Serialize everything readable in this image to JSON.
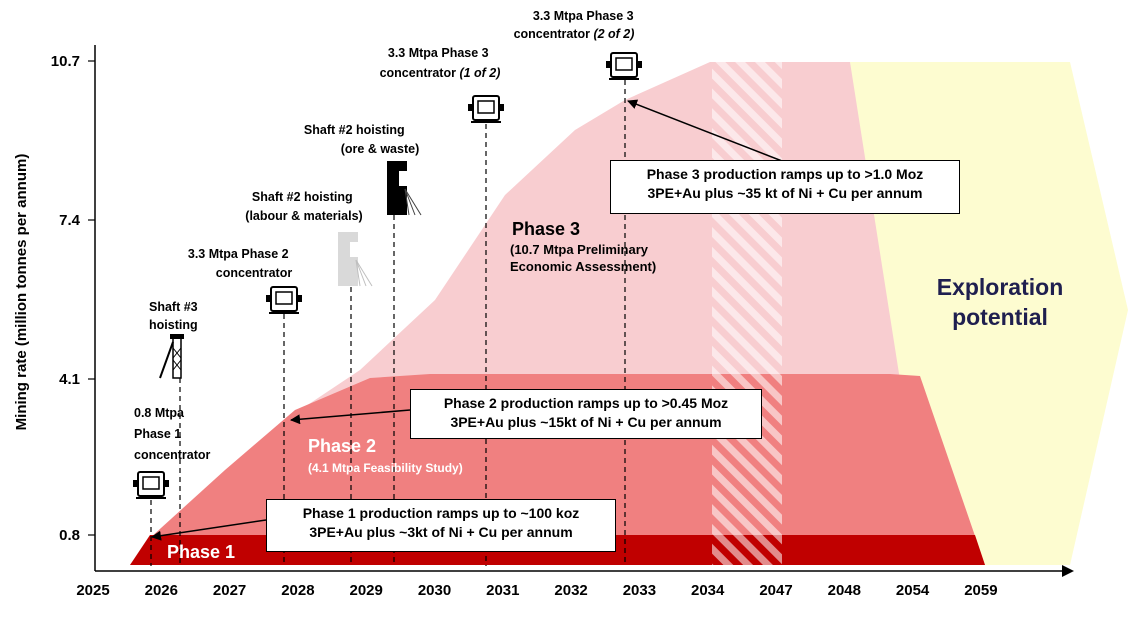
{
  "chart_data": {
    "type": "area",
    "ylabel": "Mining rate (million tonnes per annum)",
    "y_ticks": [
      0.8,
      4.1,
      7.4,
      10.7
    ],
    "x_ticks": [
      "2025",
      "2026",
      "2027",
      "2028",
      "2029",
      "2030",
      "2031",
      "2032",
      "2033",
      "2034",
      "2047",
      "2048",
      "2054",
      "2059"
    ],
    "series": [
      {
        "name": "Phase 1",
        "sub": "",
        "x": [
          "2025",
          "2026",
          "2054",
          "2059"
        ],
        "values": [
          0,
          0.8,
          0.8,
          0
        ]
      },
      {
        "name": "Phase 2",
        "sub": "(4.1 Mtpa Feasibility Study)",
        "x": [
          "2025",
          "2026",
          "2027",
          "2028",
          "2029",
          "2030",
          "2048",
          "2054",
          "2059"
        ],
        "values": [
          0,
          0.8,
          2.0,
          3.4,
          4.0,
          4.1,
          4.1,
          4.1,
          0
        ]
      },
      {
        "name": "Phase 3",
        "sub": "(10.7 Mtpa Preliminary Economic Assessment)",
        "x": [
          "2025",
          "2026",
          "2028",
          "2029",
          "2030",
          "2031",
          "2032",
          "2033",
          "2034",
          "2048",
          "2054",
          "2059"
        ],
        "values": [
          0,
          0.8,
          3.5,
          4.1,
          5.4,
          7.7,
          9.2,
          10.0,
          10.7,
          10.7,
          8.0,
          0
        ]
      },
      {
        "name": "Exploration potential",
        "sub": "",
        "x": [],
        "values": []
      }
    ],
    "milestones": [
      {
        "x": "2026",
        "label": [
          "0.8 Mtpa",
          "Phase 1",
          "concentrator"
        ],
        "icon": "concentrator-icon"
      },
      {
        "x": "2026",
        "label": [
          "Shaft #3",
          "hoisting"
        ],
        "icon": "headframe-icon"
      },
      {
        "x": "2028",
        "label": [
          "3.3 Mtpa Phase 2",
          "concentrator"
        ],
        "icon": "concentrator-icon"
      },
      {
        "x": "2029",
        "label": [
          "Shaft #2 hoisting",
          "(labour & materials)"
        ],
        "icon": "shaft-gray-icon"
      },
      {
        "x": "2029",
        "label": [
          "Shaft #2 hoisting",
          "(ore & waste)"
        ],
        "icon": "shaft-black-icon"
      },
      {
        "x": "2031",
        "label": [
          "3.3 Mtpa Phase 3",
          "concentrator (1 of 2)"
        ],
        "icon": "concentrator-icon"
      },
      {
        "x": "2033",
        "label": [
          "3.3 Mtpa Phase 3",
          "concentrator (2 of 2)"
        ],
        "icon": "concentrator-icon"
      }
    ],
    "annotations": [
      {
        "lines": [
          "Phase 1 production ramps up to ~100 koz",
          "3PE+Au plus ~3kt of Ni + Cu per annum"
        ]
      },
      {
        "lines": [
          "Phase 2 production ramps up to >0.45 Moz",
          "3PE+Au plus ~15kt of Ni + Cu per annum"
        ]
      },
      {
        "lines": [
          "Phase 3 production ramps up to >1.0 Moz",
          "3PE+Au plus ~35 kt of Ni + Cu per annum"
        ]
      }
    ],
    "colors": {
      "phase1": "#c00000",
      "phase2": "#f08080",
      "phase3": "#f8cdd0",
      "exploration": "#fdfcd0",
      "hatch": "#ffffff"
    }
  }
}
